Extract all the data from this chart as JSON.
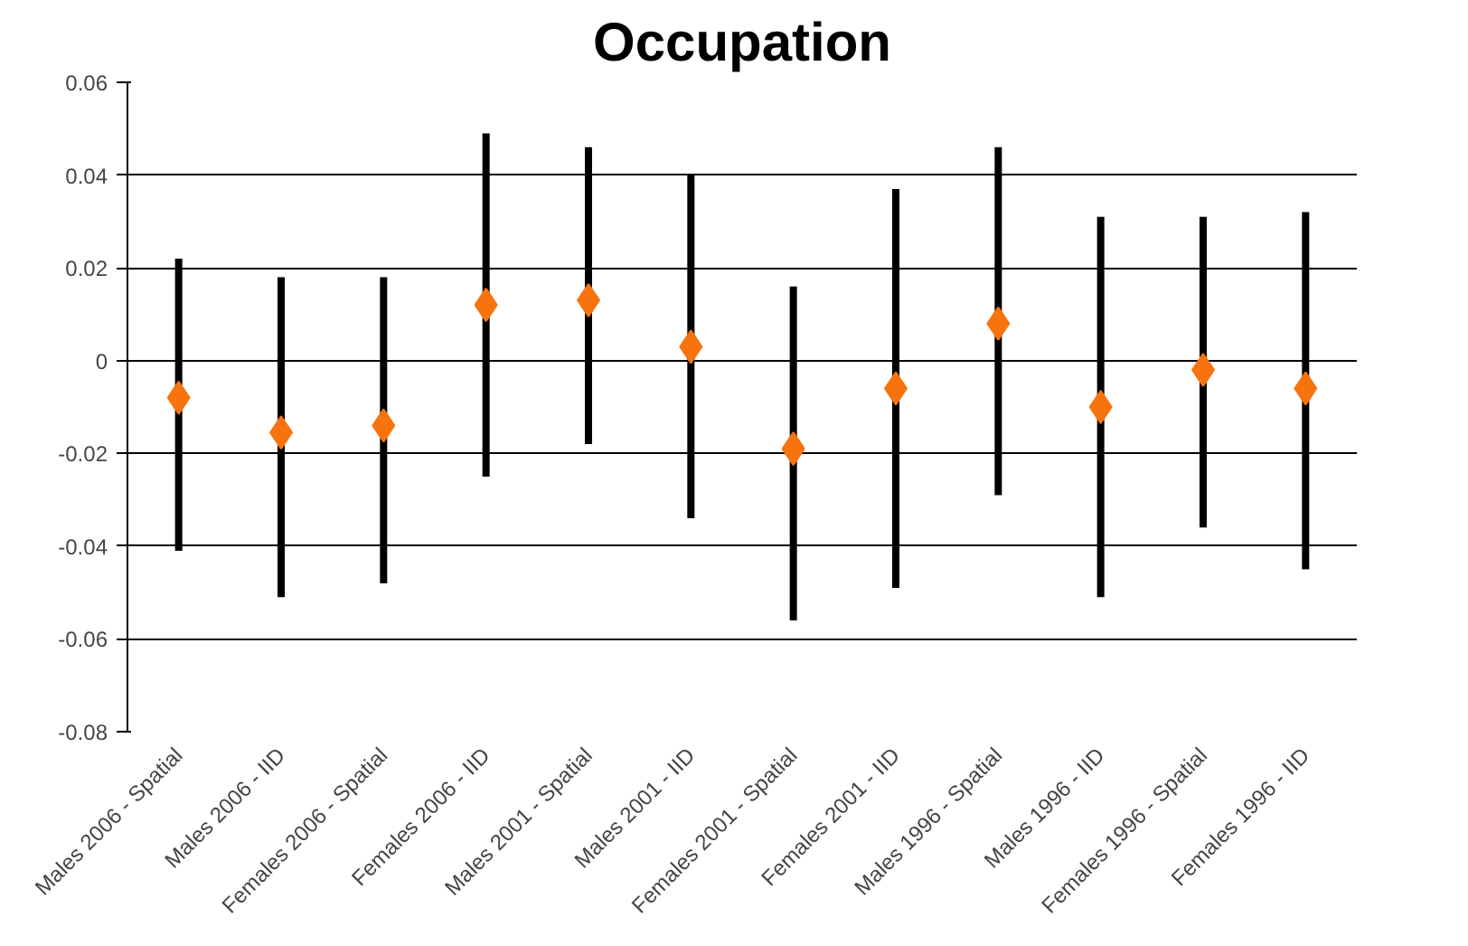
{
  "chart_data": {
    "type": "scatter",
    "title": "Occupation",
    "categories": [
      "Males 2006 - Spatial",
      "Males 2006 - IID",
      "Females 2006 - Spatial",
      "Females 2006 - IID",
      "Males 2001 - Spatial",
      "Males 2001 - IID",
      "Females 2001 - Spatial",
      "Females 2001 - IID",
      "Males 1996 - Spatial",
      "Males 1996 - IID",
      "Females 1996 - Spatial",
      "Females 1996 - IID"
    ],
    "values": [
      -0.008,
      -0.0155,
      -0.014,
      0.012,
      0.013,
      0.003,
      -0.019,
      -0.006,
      0.008,
      -0.01,
      -0.002,
      -0.006
    ],
    "errors": [
      [
        -0.041,
        0.022
      ],
      [
        -0.051,
        0.018
      ],
      [
        -0.048,
        0.018
      ],
      [
        -0.025,
        0.049
      ],
      [
        -0.018,
        0.046
      ],
      [
        -0.034,
        0.04
      ],
      [
        -0.056,
        0.016
      ],
      [
        -0.049,
        0.037
      ],
      [
        -0.029,
        0.046
      ],
      [
        -0.051,
        0.031
      ],
      [
        -0.036,
        0.031
      ],
      [
        -0.045,
        0.032
      ]
    ],
    "color": "#f7730e",
    "marker": "diamond",
    "ylim": [
      -0.08,
      0.06
    ],
    "yticks": [
      -0.08,
      -0.06,
      -0.04,
      -0.02,
      0,
      0.02,
      0.04,
      0.06
    ],
    "grid": "y"
  }
}
